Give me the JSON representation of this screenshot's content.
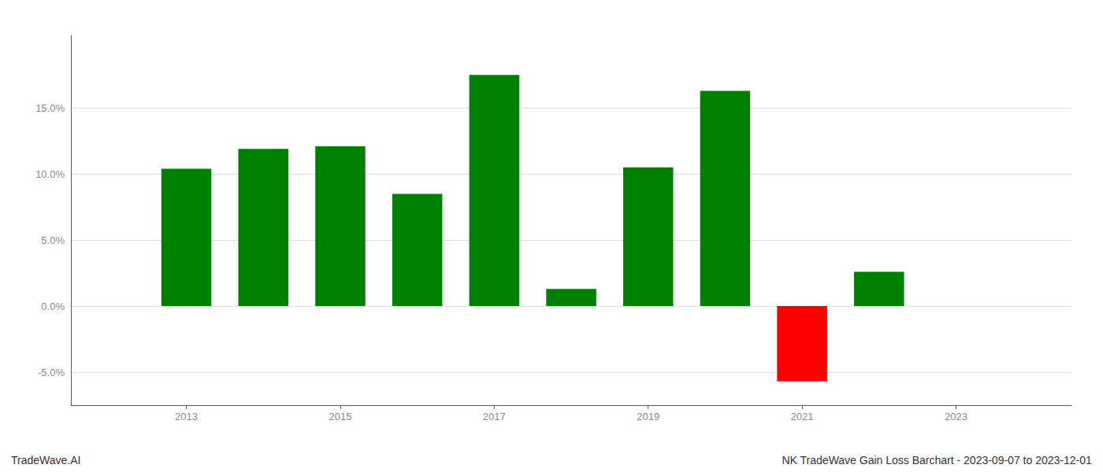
{
  "chart_data": {
    "type": "bar",
    "x": [
      2013,
      2014,
      2015,
      2016,
      2017,
      2018,
      2019,
      2020,
      2021,
      2022
    ],
    "values": [
      0.104,
      0.119,
      0.121,
      0.085,
      0.175,
      0.013,
      0.105,
      0.163,
      -0.057,
      0.026
    ],
    "colors": [
      "#008000",
      "#008000",
      "#008000",
      "#008000",
      "#008000",
      "#008000",
      "#008000",
      "#008000",
      "#ff0000",
      "#008000"
    ],
    "xlim": [
      2011.5,
      2024.5
    ],
    "xticks": [
      2013,
      2015,
      2017,
      2019,
      2021,
      2023
    ],
    "ylim": [
      -0.075,
      0.205
    ],
    "yticks": [
      {
        "value": -0.05,
        "label": "-5.0%"
      },
      {
        "value": 0.0,
        "label": "0.0%"
      },
      {
        "value": 0.05,
        "label": "5.0%"
      },
      {
        "value": 0.1,
        "label": "10.0%"
      },
      {
        "value": 0.15,
        "label": "15.0%"
      }
    ],
    "grid": true,
    "annotations": [
      "TradeWave.AI",
      "NK TradeWave Gain Loss Barchart - 2023-09-07 to 2023-12-01"
    ]
  }
}
